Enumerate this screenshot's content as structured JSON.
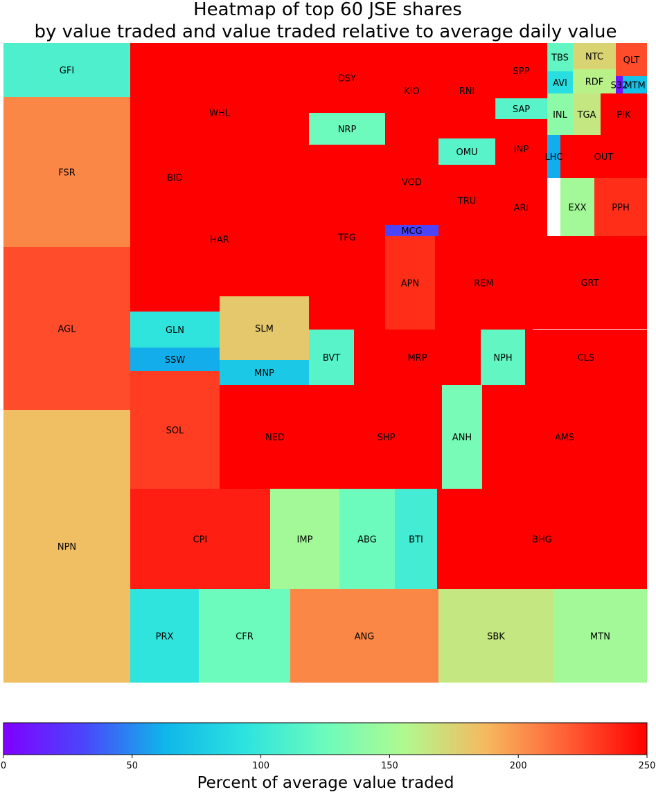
{
  "chart_data": {
    "type": "heatmap",
    "title": "Heatmap of top 60 JSE shares",
    "subtitle": "by value traded and value traded relative to average daily value",
    "xlabel": "Percent of average value traded",
    "colorbar": {
      "colormap": "rainbow",
      "range": [
        0,
        250
      ],
      "ticks": [
        "0",
        "50",
        "100",
        "150",
        "200",
        "250"
      ]
    },
    "tiles": [
      {
        "ticker": "GFI",
        "pct": 110
      },
      {
        "ticker": "FSR",
        "pct": 205
      },
      {
        "ticker": "AGL",
        "pct": 225
      },
      {
        "ticker": "NPN",
        "pct": 185
      },
      {
        "ticker": "BID",
        "pct": 250
      },
      {
        "ticker": "WHL",
        "pct": 250
      },
      {
        "ticker": "HAR",
        "pct": 250
      },
      {
        "ticker": "DSY",
        "pct": 250
      },
      {
        "ticker": "NRP",
        "pct": 125
      },
      {
        "ticker": "TFG",
        "pct": 250
      },
      {
        "ticker": "KIO",
        "pct": 250
      },
      {
        "ticker": "VOD",
        "pct": 250
      },
      {
        "ticker": "MCG",
        "pct": 30
      },
      {
        "ticker": "RNI",
        "pct": 250
      },
      {
        "ticker": "OMU",
        "pct": 115
      },
      {
        "ticker": "TRU",
        "pct": 250
      },
      {
        "ticker": "SPP",
        "pct": 250
      },
      {
        "ticker": "SAP",
        "pct": 115
      },
      {
        "ticker": "INP",
        "pct": 250
      },
      {
        "ticker": "ARI",
        "pct": 250
      },
      {
        "ticker": "TBS",
        "pct": 120
      },
      {
        "ticker": "NTC",
        "pct": 175
      },
      {
        "ticker": "QLT",
        "pct": 225
      },
      {
        "ticker": "AVI",
        "pct": 90
      },
      {
        "ticker": "RDF",
        "pct": 160
      },
      {
        "ticker": "S32",
        "pct": 10
      },
      {
        "ticker": "MTM",
        "pct": 70
      },
      {
        "ticker": "INL",
        "pct": 140
      },
      {
        "ticker": "TGA",
        "pct": 165
      },
      {
        "ticker": "PIK",
        "pct": 250
      },
      {
        "ticker": "LHC",
        "pct": 60
      },
      {
        "ticker": "OUT",
        "pct": 250
      },
      {
        "ticker": "EXX",
        "pct": 150
      },
      {
        "ticker": "PPH",
        "pct": 235
      },
      {
        "ticker": "APN",
        "pct": 235
      },
      {
        "ticker": "REM",
        "pct": 250
      },
      {
        "ticker": "GRT",
        "pct": 250
      },
      {
        "ticker": "GLN",
        "pct": 95
      },
      {
        "ticker": "SSW",
        "pct": 60
      },
      {
        "ticker": "SLM",
        "pct": 180
      },
      {
        "ticker": "MNP",
        "pct": 75
      },
      {
        "ticker": "BVT",
        "pct": 115
      },
      {
        "ticker": "MRP",
        "pct": 250
      },
      {
        "ticker": "NPH",
        "pct": 120
      },
      {
        "ticker": "CLS",
        "pct": 250
      },
      {
        "ticker": "SOL",
        "pct": 230
      },
      {
        "ticker": "NED",
        "pct": 250
      },
      {
        "ticker": "SHP",
        "pct": 250
      },
      {
        "ticker": "ANH",
        "pct": 130
      },
      {
        "ticker": "AMS",
        "pct": 250
      },
      {
        "ticker": "CPI",
        "pct": 240
      },
      {
        "ticker": "IMP",
        "pct": 150
      },
      {
        "ticker": "ABG",
        "pct": 125
      },
      {
        "ticker": "BTI",
        "pct": 105
      },
      {
        "ticker": "BHG",
        "pct": 250
      },
      {
        "ticker": "PRX",
        "pct": 95
      },
      {
        "ticker": "CFR",
        "pct": 125
      },
      {
        "ticker": "ANG",
        "pct": 205
      },
      {
        "ticker": "SBK",
        "pct": 165
      },
      {
        "ticker": "MTN",
        "pct": 150
      }
    ]
  }
}
